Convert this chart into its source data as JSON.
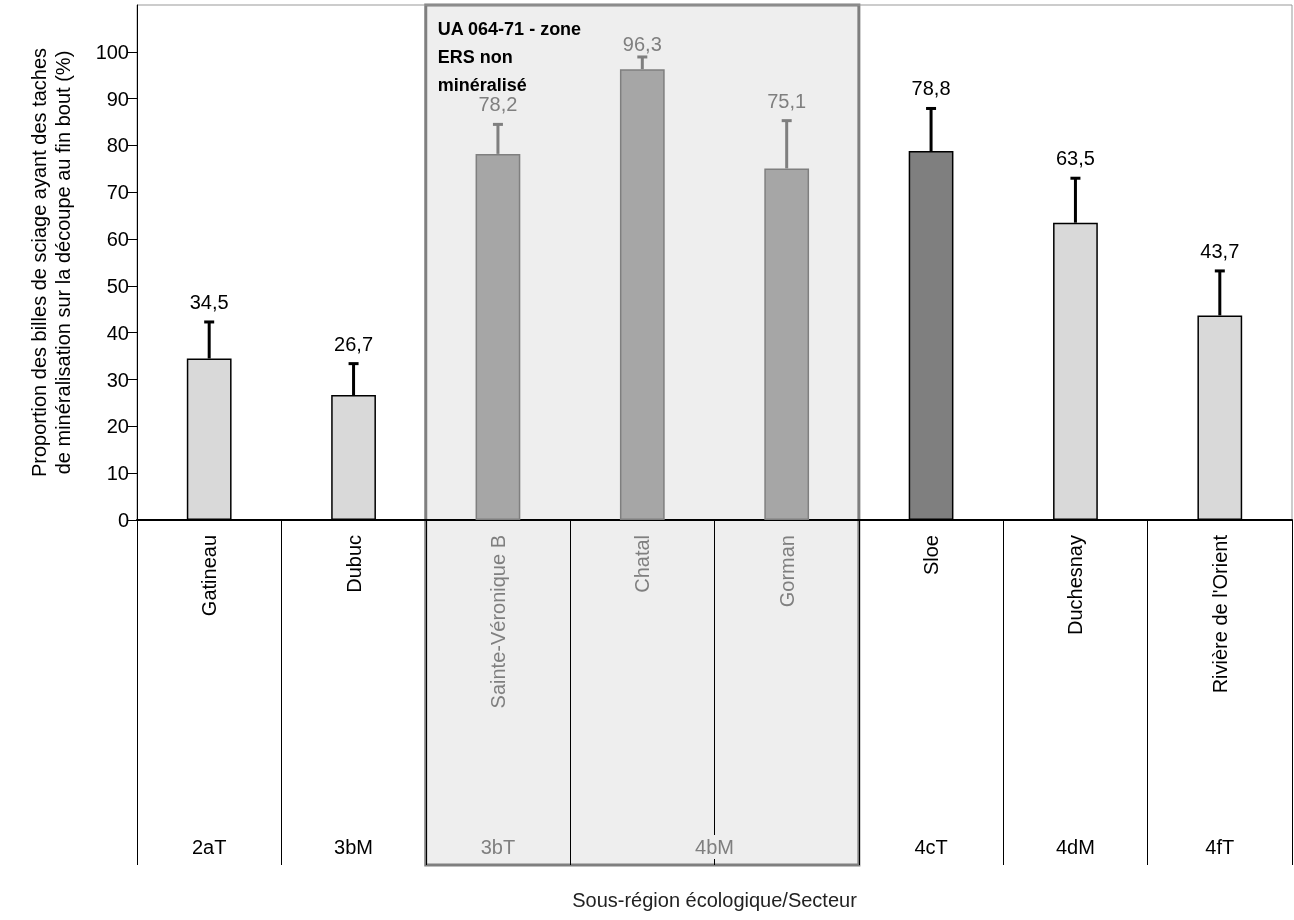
{
  "chart_data": {
    "type": "bar",
    "ylabel": "Proportion des billes de sciage ayant des taches de minéralisation sur la découpe au fin bout (%)",
    "categories": [
      "Gatineau",
      "Dubuc",
      "Sainte-Véronique B",
      "Chatal",
      "Gorman",
      "Sloe",
      "Duchesnay",
      "Rivière de l'Orient"
    ],
    "values": [
      34.5,
      26.7,
      78.2,
      96.3,
      75.1,
      78.8,
      63.5,
      43.7
    ],
    "colors": [
      "#d9d9d9",
      "#d9d9d9",
      "#a6a6a6",
      "#a6a6a6",
      "#a6a6a6",
      "#7f7f7f",
      "#d9d9d9",
      "#d9d9d9"
    ],
    "value_labels": [
      "34,5",
      "26,7",
      "78,2",
      "96,3",
      "75,1",
      "78,8",
      "63,5",
      "43,7"
    ],
    "errors": [
      [
        34.5,
        42.3
      ],
      [
        26.7,
        33.4
      ],
      [
        78.2,
        84.5
      ],
      [
        96.3,
        98.9
      ],
      [
        75.1,
        85.3
      ],
      [
        78.8,
        87.9
      ],
      [
        63.5,
        73.0
      ],
      [
        43.7,
        53.2
      ]
    ],
    "ylim": [
      0,
      110
    ],
    "yticks": [
      0,
      10,
      20,
      30,
      40,
      50,
      60,
      70,
      80,
      90,
      100
    ],
    "bands": [
      {
        "axis": "x",
        "from": "Sainte-Véronique B",
        "to": "Gorman",
        "label": "UA 064-71 - zone ERS non minéralisé",
        "color": "#eeeeee"
      }
    ],
    "annotations": [
      "2aT",
      "3bM",
      "3bT",
      "4bM",
      "4cT",
      "4dM",
      "4fT",
      "Sous-région écologique/Secteur"
    ]
  }
}
